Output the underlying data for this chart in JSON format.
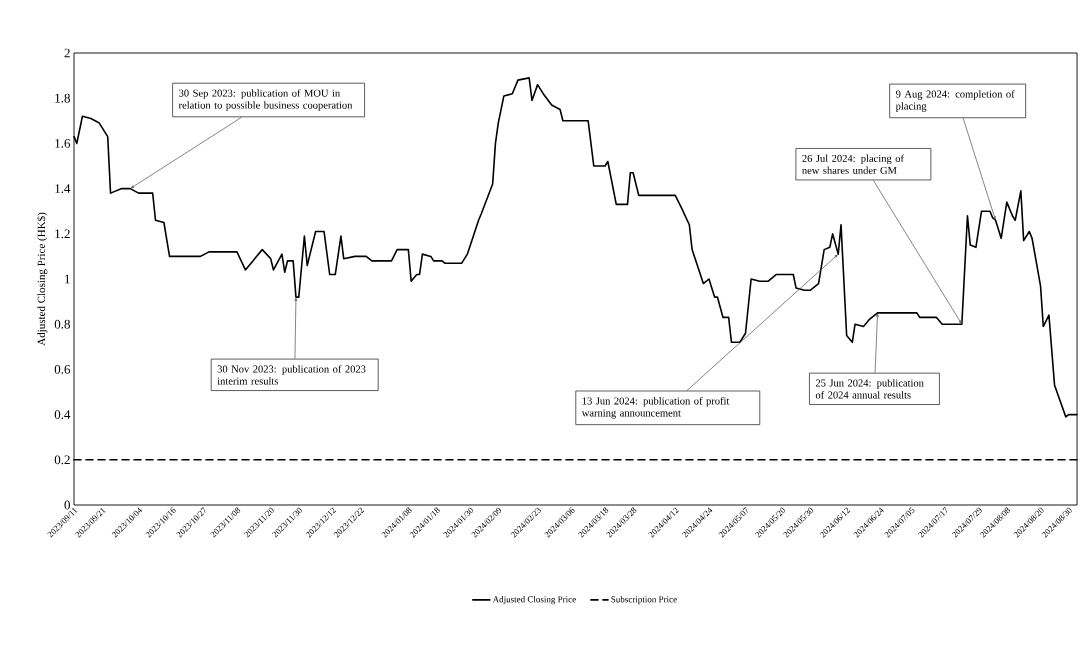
{
  "chart_data": {
    "type": "line",
    "ylabel": "Adjusted Closing Price (HK$)",
    "legend": "bottom",
    "xlim": [
      "2023-09-11",
      "2024-09-02"
    ],
    "ylim": [
      0,
      2
    ],
    "xticks": [
      {
        "value": "2023-09-11",
        "label": "2023/09/11"
      },
      {
        "value": "2023-09-21",
        "label": "2023/09/21"
      },
      {
        "value": "2023-10-04",
        "label": "2023/10/04"
      },
      {
        "value": "2023-10-16",
        "label": "2023/10/16"
      },
      {
        "value": "2023-10-27",
        "label": "2023/10/27"
      },
      {
        "value": "2023-11-08",
        "label": "2023/11/08"
      },
      {
        "value": "2023-11-20",
        "label": "2023/11/20"
      },
      {
        "value": "2023-11-30",
        "label": "2023/11/30"
      },
      {
        "value": "2023-12-12",
        "label": "2023/12/12"
      },
      {
        "value": "2023-12-22",
        "label": "2023/12/22"
      },
      {
        "value": "2024-01-08",
        "label": "2024/01/08"
      },
      {
        "value": "2024-01-18",
        "label": "2024/01/18"
      },
      {
        "value": "2024-01-30",
        "label": "2024/01/30"
      },
      {
        "value": "2024-02-09",
        "label": "2024/02/09"
      },
      {
        "value": "2024-02-23",
        "label": "2024/02/23"
      },
      {
        "value": "2024-03-06",
        "label": "2024/03/06"
      },
      {
        "value": "2024-03-18",
        "label": "2024/03/18"
      },
      {
        "value": "2024-03-28",
        "label": "2024/03/28"
      },
      {
        "value": "2024-04-12",
        "label": "2024/04/12"
      },
      {
        "value": "2024-04-24",
        "label": "2024/04/24"
      },
      {
        "value": "2024-05-07",
        "label": "2024/05/07"
      },
      {
        "value": "2024-05-20",
        "label": "2024/05/20"
      },
      {
        "value": "2024-05-30",
        "label": "2024/05/30"
      },
      {
        "value": "2024-06-12",
        "label": "2024/06/12"
      },
      {
        "value": "2024-06-24",
        "label": "2024/06/24"
      },
      {
        "value": "2024-07-05",
        "label": "2024/07/05"
      },
      {
        "value": "2024-07-17",
        "label": "2024/07/17"
      },
      {
        "value": "2024-07-29",
        "label": "2024/07/29"
      },
      {
        "value": "2024-08-08",
        "label": "2024/08/08"
      },
      {
        "value": "2024-08-20",
        "label": "2024/08/20"
      },
      {
        "value": "2024-08-30",
        "label": "2024/08/30"
      }
    ],
    "yticks": [
      0,
      0.2,
      0.4,
      0.6,
      0.8,
      1,
      1.2,
      1.4,
      1.6,
      1.8,
      2
    ],
    "series": [
      {
        "name": "Adjusted Closing Price",
        "color": "#000000",
        "line_style": "solid",
        "x": [
          "2023-09-11",
          "2023-09-12",
          "2023-09-14",
          "2023-09-17",
          "2023-09-20",
          "2023-09-23",
          "2023-09-24",
          "2023-09-28",
          "2023-10-01",
          "2023-10-04",
          "2023-10-09",
          "2023-10-10",
          "2023-10-13",
          "2023-10-15",
          "2023-10-26",
          "2023-10-29",
          "2023-11-08",
          "2023-11-11",
          "2023-11-17",
          "2023-11-20",
          "2023-11-21",
          "2023-11-24",
          "2023-11-25",
          "2023-11-26",
          "2023-11-28",
          "2023-11-29",
          "2023-11-30",
          "2023-12-02",
          "2023-12-03",
          "2023-12-06",
          "2023-12-09",
          "2023-12-11",
          "2023-12-13",
          "2023-12-15",
          "2023-12-16",
          "2023-12-20",
          "2023-12-24",
          "2023-12-26",
          "2024-01-02",
          "2024-01-04",
          "2024-01-08",
          "2024-01-09",
          "2024-01-11",
          "2024-01-12",
          "2024-01-13",
          "2024-01-16",
          "2024-01-17",
          "2024-01-20",
          "2024-01-21",
          "2024-01-27",
          "2024-01-29",
          "2024-02-02",
          "2024-02-03",
          "2024-02-07",
          "2024-02-08",
          "2024-02-09",
          "2024-02-11",
          "2024-02-14",
          "2024-02-16",
          "2024-02-20",
          "2024-02-21",
          "2024-02-23",
          "2024-02-25",
          "2024-02-28",
          "2024-03-02",
          "2024-03-03",
          "2024-03-12",
          "2024-03-14",
          "2024-03-18",
          "2024-03-19",
          "2024-03-22",
          "2024-03-26",
          "2024-03-27",
          "2024-03-28",
          "2024-03-30",
          "2024-04-12",
          "2024-04-14",
          "2024-04-17",
          "2024-04-18",
          "2024-04-22",
          "2024-04-24",
          "2024-04-26",
          "2024-04-27",
          "2024-04-29",
          "2024-05-01",
          "2024-05-02",
          "2024-05-05",
          "2024-05-07",
          "2024-05-09",
          "2024-05-12",
          "2024-05-15",
          "2024-05-18",
          "2024-05-24",
          "2024-05-25",
          "2024-05-28",
          "2024-05-30",
          "2024-06-02",
          "2024-06-04",
          "2024-06-06",
          "2024-06-07",
          "2024-06-09",
          "2024-06-10",
          "2024-06-12",
          "2024-06-14",
          "2024-06-15",
          "2024-06-18",
          "2024-06-20",
          "2024-06-23",
          "2024-07-07",
          "2024-07-08",
          "2024-07-14",
          "2024-07-16",
          "2024-07-23",
          "2024-07-25",
          "2024-07-26",
          "2024-07-28",
          "2024-07-30",
          "2024-08-02",
          "2024-08-03",
          "2024-08-04",
          "2024-08-06",
          "2024-08-08",
          "2024-08-10",
          "2024-08-11",
          "2024-08-13",
          "2024-08-14",
          "2024-08-16",
          "2024-08-17",
          "2024-08-20",
          "2024-08-21",
          "2024-08-23",
          "2024-08-25",
          "2024-08-29",
          "2024-08-30",
          "2024-09-02"
        ],
        "values": [
          1.63,
          1.6,
          1.72,
          1.71,
          1.69,
          1.63,
          1.38,
          1.4,
          1.4,
          1.38,
          1.38,
          1.26,
          1.25,
          1.1,
          1.1,
          1.12,
          1.12,
          1.04,
          1.13,
          1.09,
          1.04,
          1.11,
          1.03,
          1.08,
          1.08,
          0.92,
          0.92,
          1.19,
          1.06,
          1.21,
          1.21,
          1.02,
          1.02,
          1.19,
          1.09,
          1.1,
          1.1,
          1.08,
          1.08,
          1.13,
          1.13,
          0.99,
          1.02,
          1.02,
          1.11,
          1.1,
          1.08,
          1.08,
          1.07,
          1.07,
          1.11,
          1.26,
          1.29,
          1.42,
          1.6,
          1.69,
          1.81,
          1.82,
          1.88,
          1.89,
          1.79,
          1.86,
          1.82,
          1.77,
          1.75,
          1.7,
          1.7,
          1.5,
          1.5,
          1.52,
          1.33,
          1.33,
          1.47,
          1.47,
          1.37,
          1.37,
          1.32,
          1.24,
          1.13,
          0.98,
          1.0,
          0.92,
          0.92,
          0.83,
          0.83,
          0.72,
          0.72,
          0.76,
          1.0,
          0.99,
          0.99,
          1.02,
          1.02,
          0.96,
          0.95,
          0.95,
          0.98,
          1.13,
          1.14,
          1.2,
          1.11,
          1.24,
          0.75,
          0.72,
          0.8,
          0.79,
          0.82,
          0.85,
          0.85,
          0.83,
          0.83,
          0.8,
          0.8,
          1.28,
          1.15,
          1.14,
          1.3,
          1.3,
          1.27,
          1.26,
          1.18,
          1.34,
          1.28,
          1.26,
          1.39,
          1.17,
          1.21,
          1.18,
          0.97,
          0.79,
          0.84,
          0.53,
          0.39,
          0.4,
          0.4
        ]
      },
      {
        "name": "Subscription Price",
        "color": "#000000",
        "line_style": "dashed",
        "x": [
          "2023-09-11",
          "2024-09-02"
        ],
        "values": [
          0.2,
          0.2
        ]
      }
    ],
    "annotations": [
      {
        "text": "30 Sep 2023: publication of MOU in relation to possible business cooperation",
        "x": "2023-10-01",
        "y": 1.4
      },
      {
        "text": "30 Nov 2023: publication of 2023 interim results",
        "x": "2023-11-29",
        "y": 0.92
      },
      {
        "text": "13 Jun 2024: publication of profit warning announcement",
        "x": "2024-06-09",
        "y": 1.11
      },
      {
        "text": "25 Jun 2024: publication of 2024 annual results",
        "x": "2024-06-23",
        "y": 0.85
      },
      {
        "text": "26 Jul 2024: placing of new shares under GM",
        "x": "2024-07-23",
        "y": 0.8
      },
      {
        "text": "9 Aug 2024: completion of placing",
        "x": "2024-08-04",
        "y": 1.26
      }
    ]
  }
}
